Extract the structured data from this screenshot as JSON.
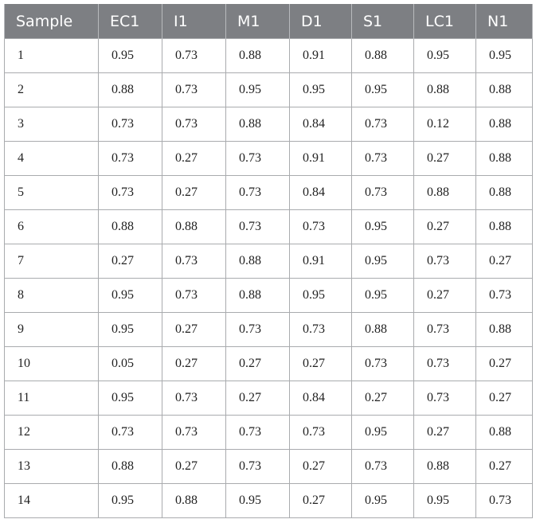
{
  "table": {
    "header": [
      "Sample",
      "EC1",
      "I1",
      "M1",
      "D1",
      "S1",
      "LC1",
      "N1"
    ],
    "rows": [
      [
        "1",
        "0.95",
        "0.73",
        "0.88",
        "0.91",
        "0.88",
        "0.95",
        "0.95"
      ],
      [
        "2",
        "0.88",
        "0.73",
        "0.95",
        "0.95",
        "0.95",
        "0.88",
        "0.88"
      ],
      [
        "3",
        "0.73",
        "0.73",
        "0.88",
        "0.84",
        "0.73",
        "0.12",
        "0.88"
      ],
      [
        "4",
        "0.73",
        "0.27",
        "0.73",
        "0.91",
        "0.73",
        "0.27",
        "0.88"
      ],
      [
        "5",
        "0.73",
        "0.27",
        "0.73",
        "0.84",
        "0.73",
        "0.88",
        "0.88"
      ],
      [
        "6",
        "0.88",
        "0.88",
        "0.73",
        "0.73",
        "0.95",
        "0.27",
        "0.88"
      ],
      [
        "7",
        "0.27",
        "0.73",
        "0.88",
        "0.91",
        "0.95",
        "0.73",
        "0.27"
      ],
      [
        "8",
        "0.95",
        "0.73",
        "0.88",
        "0.95",
        "0.95",
        "0.27",
        "0.73"
      ],
      [
        "9",
        "0.95",
        "0.27",
        "0.73",
        "0.73",
        "0.88",
        "0.73",
        "0.88"
      ],
      [
        "10",
        "0.05",
        "0.27",
        "0.27",
        "0.27",
        "0.73",
        "0.73",
        "0.27"
      ],
      [
        "11",
        "0.95",
        "0.73",
        "0.27",
        "0.84",
        "0.27",
        "0.73",
        "0.27"
      ],
      [
        "12",
        "0.73",
        "0.73",
        "0.73",
        "0.73",
        "0.95",
        "0.27",
        "0.88"
      ],
      [
        "13",
        "0.88",
        "0.27",
        "0.73",
        "0.27",
        "0.73",
        "0.88",
        "0.27"
      ],
      [
        "14",
        "0.95",
        "0.88",
        "0.95",
        "0.27",
        "0.95",
        "0.95",
        "0.73"
      ]
    ]
  }
}
